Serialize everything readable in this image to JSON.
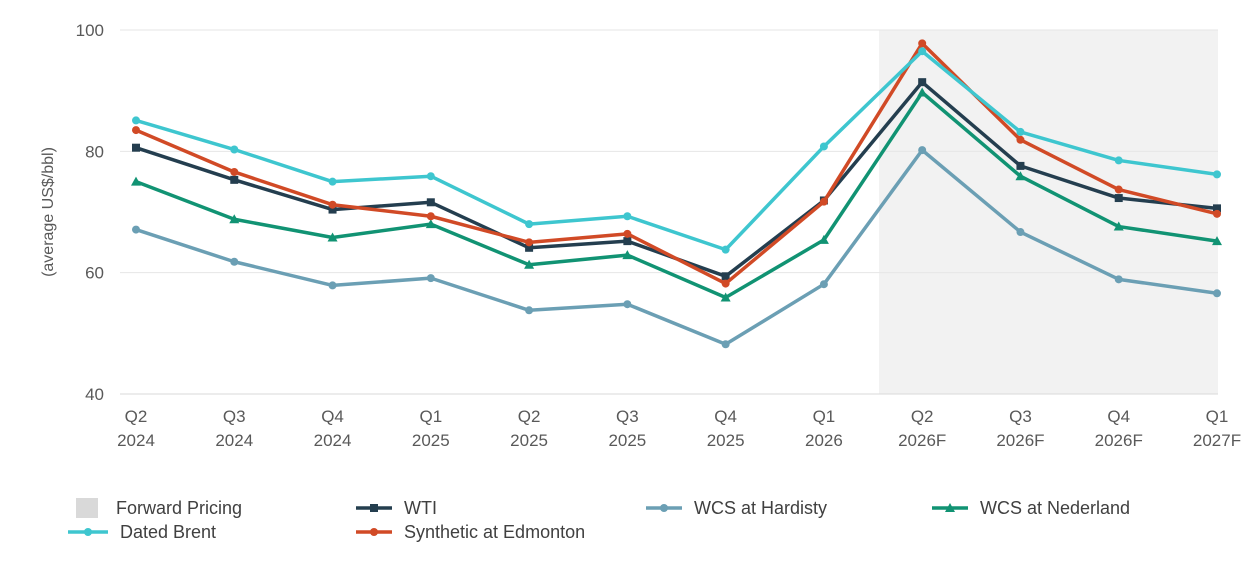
{
  "chart_data": {
    "type": "line",
    "ylabel": "(average US$/bbl)",
    "ylim": [
      40,
      100
    ],
    "yticks": [
      40,
      60,
      80,
      100
    ],
    "grid": true,
    "categories": [
      [
        "Q2",
        "2024"
      ],
      [
        "Q3",
        "2024"
      ],
      [
        "Q4",
        "2024"
      ],
      [
        "Q1",
        "2025"
      ],
      [
        "Q2",
        "2025"
      ],
      [
        "Q3",
        "2025"
      ],
      [
        "Q4",
        "2025"
      ],
      [
        "Q1",
        "2026"
      ],
      [
        "Q2",
        "2026F"
      ],
      [
        "Q3",
        "2026F"
      ],
      [
        "Q4",
        "2026F"
      ],
      [
        "Q1",
        "2027F"
      ]
    ],
    "forward_pricing": {
      "name": "Forward Pricing",
      "from_index": 8,
      "to_index": 11,
      "color": "#f2f2f2"
    },
    "series": [
      {
        "name": "Dated Brent",
        "color": "#3ec6cf",
        "marker": "circle",
        "values": [
          85.1,
          80.3,
          75.0,
          75.9,
          68.0,
          69.3,
          63.8,
          80.8,
          96.5,
          83.2,
          78.5,
          76.2
        ]
      },
      {
        "name": "Synthetic at Edmonton",
        "color": "#d14a26",
        "marker": "circle",
        "values": [
          83.5,
          76.6,
          71.2,
          69.3,
          65.0,
          66.4,
          58.2,
          71.7,
          97.8,
          81.9,
          73.7,
          69.7
        ]
      },
      {
        "name": "WTI",
        "color": "#243e4f",
        "marker": "square",
        "values": [
          80.6,
          75.3,
          70.4,
          71.6,
          64.1,
          65.2,
          59.4,
          71.9,
          91.4,
          77.6,
          72.3,
          70.6
        ]
      },
      {
        "name": "WCS at Nederland",
        "color": "#119373",
        "marker": "triangle",
        "values": [
          75.0,
          68.8,
          65.8,
          68.0,
          61.3,
          62.9,
          55.9,
          65.4,
          89.7,
          75.9,
          67.6,
          65.2
        ]
      },
      {
        "name": "WCS at Hardisty",
        "color": "#6b9fb4",
        "marker": "circle",
        "values": [
          67.1,
          61.8,
          57.9,
          59.1,
          53.8,
          54.8,
          48.2,
          58.1,
          80.2,
          66.7,
          58.9,
          56.6
        ]
      }
    ],
    "legend": {
      "placement": "bottom",
      "entries": [
        "Forward Pricing",
        "WTI",
        "WCS at Hardisty",
        "WCS at Nederland",
        "Dated Brent",
        "Synthetic at Edmonton"
      ]
    }
  }
}
